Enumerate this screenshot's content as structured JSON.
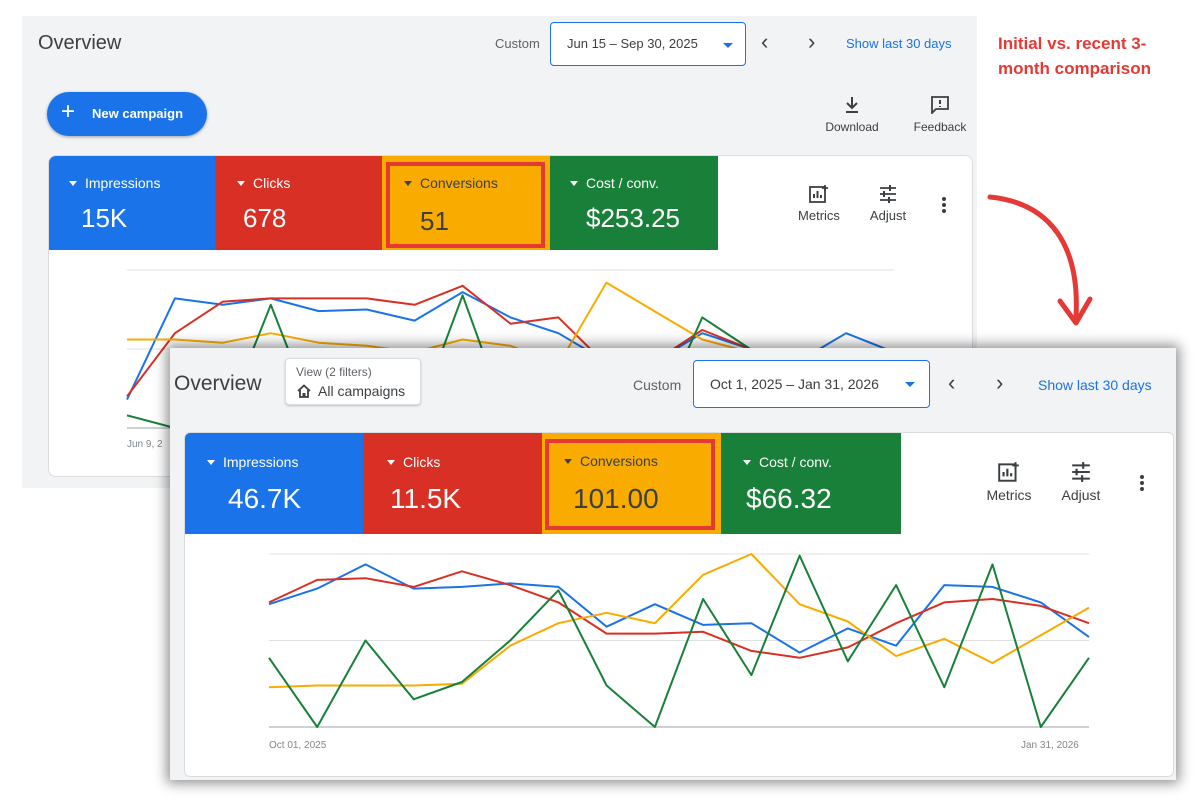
{
  "annotation": {
    "text": "Initial vs. recent 3-month comparison",
    "color": "#e53935"
  },
  "colors": {
    "impressions": "#1a73e8",
    "clicks": "#d93025",
    "conversions": "#f9ab00",
    "cost_per_conv": "#188038",
    "highlight": "#e53935"
  },
  "initial_view": {
    "title": "Overview",
    "date_mode": "Custom",
    "date_range": "Jun 15 – Sep 30, 2025",
    "show_last_link": "Show last 30 days",
    "new_campaign_label": "New campaign",
    "download_label": "Download",
    "feedback_label": "Feedback",
    "metrics_label": "Metrics",
    "adjust_label": "Adjust",
    "tiles": [
      {
        "label": "Impressions",
        "value": "15K"
      },
      {
        "label": "Clicks",
        "value": "678"
      },
      {
        "label": "Conversions",
        "value": "51"
      },
      {
        "label": "Cost / conv.",
        "value": "$253.25"
      }
    ],
    "x_start_label": "Jun 9, 2"
  },
  "recent_view": {
    "title": "Overview",
    "view_filters": "View (2 filters)",
    "campaign_scope": "All campaigns",
    "date_mode": "Custom",
    "date_range": "Oct 1, 2025 – Jan 31, 2026",
    "show_last_link": "Show last 30 days",
    "metrics_label": "Metrics",
    "adjust_label": "Adjust",
    "tiles": [
      {
        "label": "Impressions",
        "value": "46.7K"
      },
      {
        "label": "Clicks",
        "value": "11.5K"
      },
      {
        "label": "Conversions",
        "value": "101.00"
      },
      {
        "label": "Cost / conv.",
        "value": "$66.32"
      }
    ],
    "x_start_label": "Oct 01, 2025",
    "x_end_label": "Jan 31, 2026"
  },
  "chart_data": [
    {
      "type": "line",
      "x": [
        0,
        1,
        2,
        3,
        4,
        5,
        6,
        7,
        8,
        9,
        10,
        11,
        12,
        13,
        14,
        15,
        16
      ],
      "ylim": [
        0,
        100
      ],
      "grid": true,
      "series": [
        {
          "values": [
            18,
            82,
            78,
            82,
            74,
            75,
            68,
            86,
            70,
            60,
            42,
            42,
            60,
            50,
            42,
            60,
            48
          ]
        },
        {
          "values": [
            20,
            60,
            80,
            82,
            82,
            82,
            78,
            90,
            66,
            70,
            40,
            42,
            62,
            50,
            42,
            40,
            40
          ]
        },
        {
          "values": [
            56,
            56,
            54,
            60,
            54,
            52,
            48,
            56,
            52,
            40,
            92,
            74,
            56,
            48,
            42,
            32,
            30
          ]
        },
        {
          "values": [
            8,
            0,
            2,
            78,
            0,
            0,
            2,
            84,
            0,
            0,
            0,
            2,
            70,
            50,
            10,
            2,
            0
          ]
        }
      ]
    },
    {
      "type": "line",
      "x": [
        0,
        1,
        2,
        3,
        4,
        5,
        6,
        7,
        8,
        9,
        10,
        11,
        12,
        13,
        14,
        15,
        16,
        17
      ],
      "ylim": [
        0,
        100
      ],
      "grid": true,
      "series": [
        {
          "values": [
            71,
            80,
            94,
            80,
            81,
            83,
            81,
            58,
            71,
            59,
            60,
            43,
            57,
            47,
            82,
            81,
            72,
            52
          ]
        },
        {
          "values": [
            72,
            85,
            86,
            81,
            90,
            82,
            72,
            54,
            54,
            55,
            44,
            40,
            46,
            60,
            72,
            74,
            70,
            60
          ]
        },
        {
          "values": [
            23,
            24,
            24,
            24,
            25,
            47,
            60,
            66,
            60,
            88,
            100,
            71,
            61,
            41,
            51,
            37,
            53,
            69
          ]
        },
        {
          "values": [
            40,
            0,
            50,
            16,
            26,
            50,
            79,
            24,
            0,
            74,
            30,
            99,
            38,
            82,
            23,
            94,
            0,
            40
          ]
        }
      ]
    }
  ]
}
